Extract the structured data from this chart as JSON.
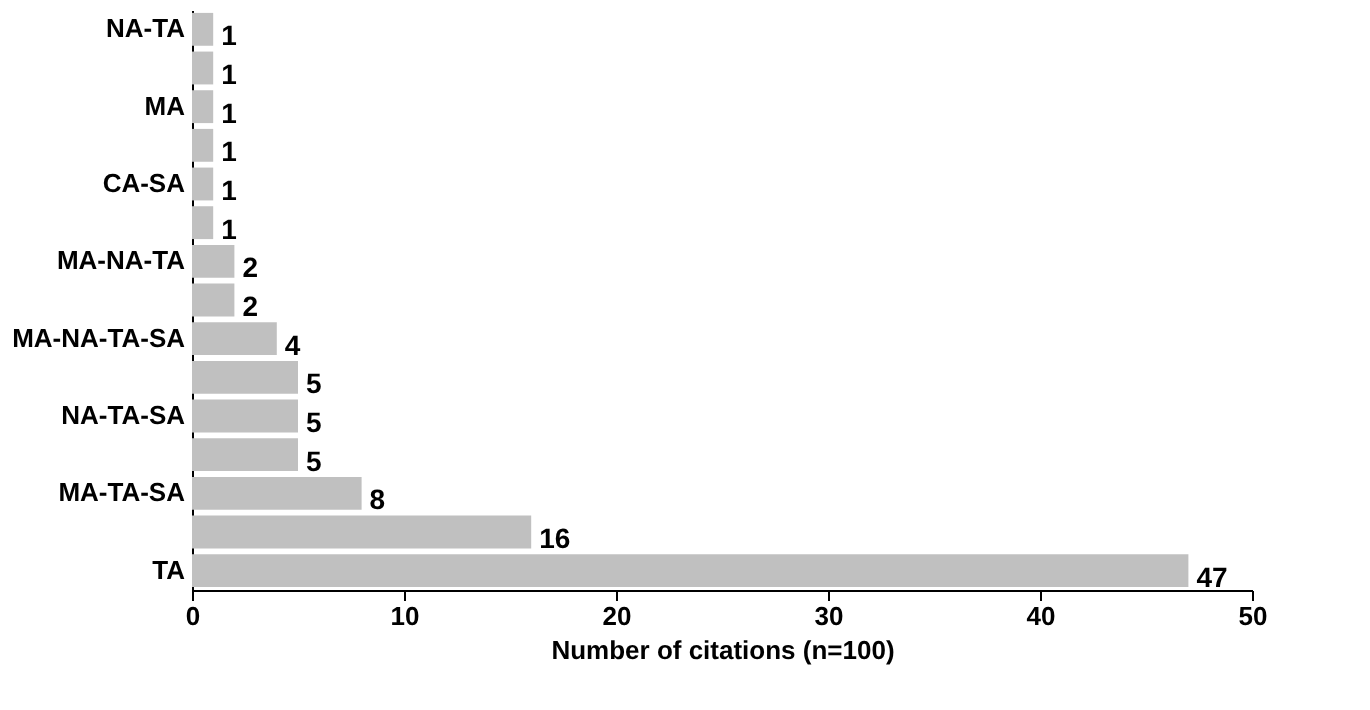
{
  "chart_data": {
    "type": "bar",
    "orientation": "horizontal",
    "xlabel": "Number of citations (n=100)",
    "categories": [
      "NA-TA",
      null,
      "MA",
      null,
      "CA-SA",
      null,
      "MA-NA-TA",
      null,
      "MA-NA-TA-SA",
      null,
      "NA-TA-SA",
      null,
      "MA-TA-SA",
      null,
      "TA"
    ],
    "values": [
      1,
      1,
      1,
      1,
      1,
      1,
      2,
      2,
      4,
      5,
      5,
      5,
      8,
      16,
      47
    ],
    "color": "#c0c0c0",
    "xlim": [
      0,
      50
    ],
    "xticks": [
      0,
      10,
      20,
      30,
      40,
      50
    ],
    "grid": false,
    "data_labels": true
  }
}
